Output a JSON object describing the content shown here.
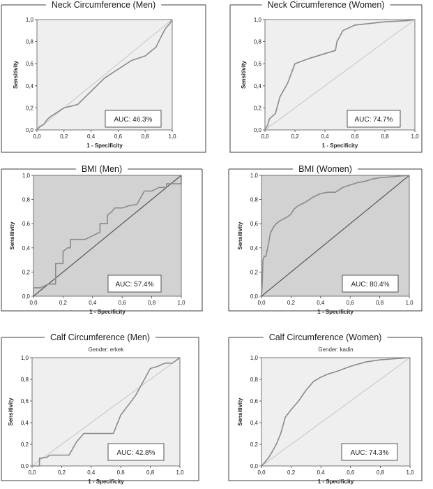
{
  "chart_data": [
    {
      "type": "line",
      "title": "Neck Circumference (Men)",
      "subtitle": "",
      "xlabel": "1 - Specificity",
      "ylabel": "Sensitivity",
      "xlim": [
        0,
        1
      ],
      "ylim": [
        0,
        1
      ],
      "x_ticks": [
        "0,0",
        "0,2",
        "0,4",
        "0,6",
        "0,8",
        "1,0"
      ],
      "y_ticks": [
        "0,0",
        "0,2",
        "0,4",
        "0,6",
        "0,8",
        "1,0"
      ],
      "background": "light",
      "annotation": "AUC: 46.3%",
      "series": [
        {
          "x": [
            0,
            0.02,
            0.05,
            0.08,
            0.1,
            0.15,
            0.2,
            0.3,
            0.4,
            0.5,
            0.6,
            0.7,
            0.8,
            0.88,
            0.92,
            0.95,
            0.98,
            1.0
          ],
          "y": [
            0,
            0.03,
            0.05,
            0.1,
            0.12,
            0.16,
            0.2,
            0.23,
            0.35,
            0.47,
            0.55,
            0.63,
            0.67,
            0.75,
            0.85,
            0.92,
            0.96,
            1.0
          ]
        }
      ],
      "grid": false
    },
    {
      "type": "line",
      "title": "Neck Circumference (Women)",
      "subtitle": "",
      "xlabel": "1 - Specificity",
      "ylabel": "Sensitivity",
      "xlim": [
        0,
        1
      ],
      "ylim": [
        0,
        1
      ],
      "x_ticks": [
        "0,0",
        "0,2",
        "0,4",
        "0,6",
        "0,8",
        "1,0"
      ],
      "y_ticks": [
        "0,0",
        "0,2",
        "0,4",
        "0,6",
        "0,8",
        "1,0"
      ],
      "background": "light",
      "annotation": "AUC: 74.7%",
      "series": [
        {
          "x": [
            0,
            0.02,
            0.03,
            0.07,
            0.1,
            0.15,
            0.2,
            0.3,
            0.47,
            0.48,
            0.52,
            0.6,
            0.8,
            0.95,
            1.0
          ],
          "y": [
            0,
            0.05,
            0.1,
            0.15,
            0.3,
            0.42,
            0.6,
            0.65,
            0.72,
            0.8,
            0.9,
            0.95,
            0.98,
            0.99,
            1.0
          ]
        }
      ],
      "grid": false
    },
    {
      "type": "line",
      "title": "BMI (Men)",
      "subtitle": "",
      "xlabel": "1 - Specificity",
      "ylabel": "Sensitivity",
      "xlim": [
        0,
        1
      ],
      "ylim": [
        0,
        1
      ],
      "x_ticks": [
        "0,0",
        "0,2",
        "0,4",
        "0,6",
        "0,8",
        "1,0"
      ],
      "y_ticks": [
        "0,0",
        "0,2",
        "0,4",
        "0,6",
        "0,8",
        "1,0"
      ],
      "background": "dark",
      "annotation": "AUC: 57.4%",
      "series": [
        {
          "x": [
            0,
            0,
            0.05,
            0.1,
            0.15,
            0.15,
            0.2,
            0.2,
            0.23,
            0.25,
            0.25,
            0.35,
            0.45,
            0.45,
            0.5,
            0.5,
            0.53,
            0.55,
            0.6,
            0.65,
            0.7,
            0.75,
            0.8,
            0.85,
            0.9,
            0.9,
            1.0,
            1.0
          ],
          "y": [
            0,
            0.07,
            0.07,
            0.1,
            0.1,
            0.27,
            0.27,
            0.37,
            0.4,
            0.4,
            0.47,
            0.47,
            0.53,
            0.6,
            0.6,
            0.67,
            0.7,
            0.73,
            0.73,
            0.75,
            0.76,
            0.87,
            0.87,
            0.9,
            0.9,
            0.93,
            0.93,
            1.0
          ]
        }
      ],
      "grid": false
    },
    {
      "type": "line",
      "title": "BMI  (Women)",
      "subtitle": "",
      "xlabel": "1 - Specificity",
      "ylabel": "Sensitivity",
      "xlim": [
        0,
        1
      ],
      "ylim": [
        0,
        1
      ],
      "x_ticks": [
        "0,0",
        "0,2",
        "0,4",
        "0,6",
        "0,8",
        "1,0"
      ],
      "y_ticks": [
        "0,0",
        "0,2",
        "0,4",
        "0,6",
        "0,8",
        "1,0"
      ],
      "background": "dark",
      "annotation": "AUC: 80.4%",
      "series": [
        {
          "x": [
            0,
            0.005,
            0.01,
            0.02,
            0.03,
            0.05,
            0.06,
            0.08,
            0.1,
            0.12,
            0.15,
            0.18,
            0.2,
            0.22,
            0.25,
            0.3,
            0.35,
            0.4,
            0.45,
            0.5,
            0.55,
            0.6,
            0.65,
            0.7,
            0.75,
            0.8,
            0.9,
            1.0
          ],
          "y": [
            0,
            0.1,
            0.3,
            0.33,
            0.33,
            0.45,
            0.52,
            0.57,
            0.6,
            0.62,
            0.64,
            0.66,
            0.68,
            0.72,
            0.75,
            0.78,
            0.82,
            0.85,
            0.86,
            0.86,
            0.9,
            0.92,
            0.94,
            0.95,
            0.97,
            0.98,
            0.99,
            1.0
          ]
        }
      ],
      "grid": false
    },
    {
      "type": "line",
      "title": "Calf Circumference (Men)",
      "subtitle": "Gender: erkek",
      "xlabel": "1 - Specificity",
      "ylabel": "Sensitivity",
      "xlim": [
        0,
        1
      ],
      "ylim": [
        0,
        1
      ],
      "x_ticks": [
        "0,0",
        "0,2",
        "0,4",
        "0,6",
        "0,8",
        "1,0"
      ],
      "y_ticks": [
        "0,0",
        "0,2",
        "0,4",
        "0,6",
        "0,8",
        "1,0"
      ],
      "background": "light",
      "annotation": "AUC: 42.8%",
      "series": [
        {
          "x": [
            0,
            0.05,
            0.05,
            0.1,
            0.12,
            0.25,
            0.3,
            0.35,
            0.55,
            0.6,
            0.7,
            0.8,
            0.85,
            0.9,
            0.95,
            0.97,
            1.0
          ],
          "y": [
            0,
            0,
            0.07,
            0.08,
            0.1,
            0.1,
            0.22,
            0.3,
            0.3,
            0.47,
            0.65,
            0.9,
            0.92,
            0.95,
            0.95,
            0.97,
            1.0
          ]
        }
      ],
      "grid": false
    },
    {
      "type": "line",
      "title": "Calf Circumference (Women)",
      "subtitle": "Gender: kadin",
      "xlabel": "1 - Specificity",
      "ylabel": "Sensitivity",
      "xlim": [
        0,
        1
      ],
      "ylim": [
        0,
        1
      ],
      "x_ticks": [
        "0,0",
        "0,2",
        "0,4",
        "0,6",
        "0,8",
        "1,0"
      ],
      "y_ticks": [
        "0,0",
        "0,2",
        "0,4",
        "0,6",
        "0,8",
        "1,0"
      ],
      "background": "light",
      "annotation": "AUC: 74.3%",
      "series": [
        {
          "x": [
            0,
            0.02,
            0.05,
            0.08,
            0.1,
            0.13,
            0.16,
            0.2,
            0.25,
            0.3,
            0.35,
            0.4,
            0.45,
            0.5,
            0.6,
            0.7,
            0.8,
            0.9,
            1.0
          ],
          "y": [
            0,
            0.03,
            0.08,
            0.15,
            0.2,
            0.3,
            0.45,
            0.52,
            0.6,
            0.7,
            0.78,
            0.82,
            0.85,
            0.87,
            0.92,
            0.96,
            0.98,
            0.99,
            1.0
          ]
        }
      ],
      "grid": false
    }
  ],
  "colors": {
    "light_panel_bg": "#efefef",
    "dark_panel_bg": "#d2d2d2",
    "roc_line": "#8a8a8a",
    "reference_line_light": "#c4c4c4",
    "reference_line_dark": "#555555"
  }
}
